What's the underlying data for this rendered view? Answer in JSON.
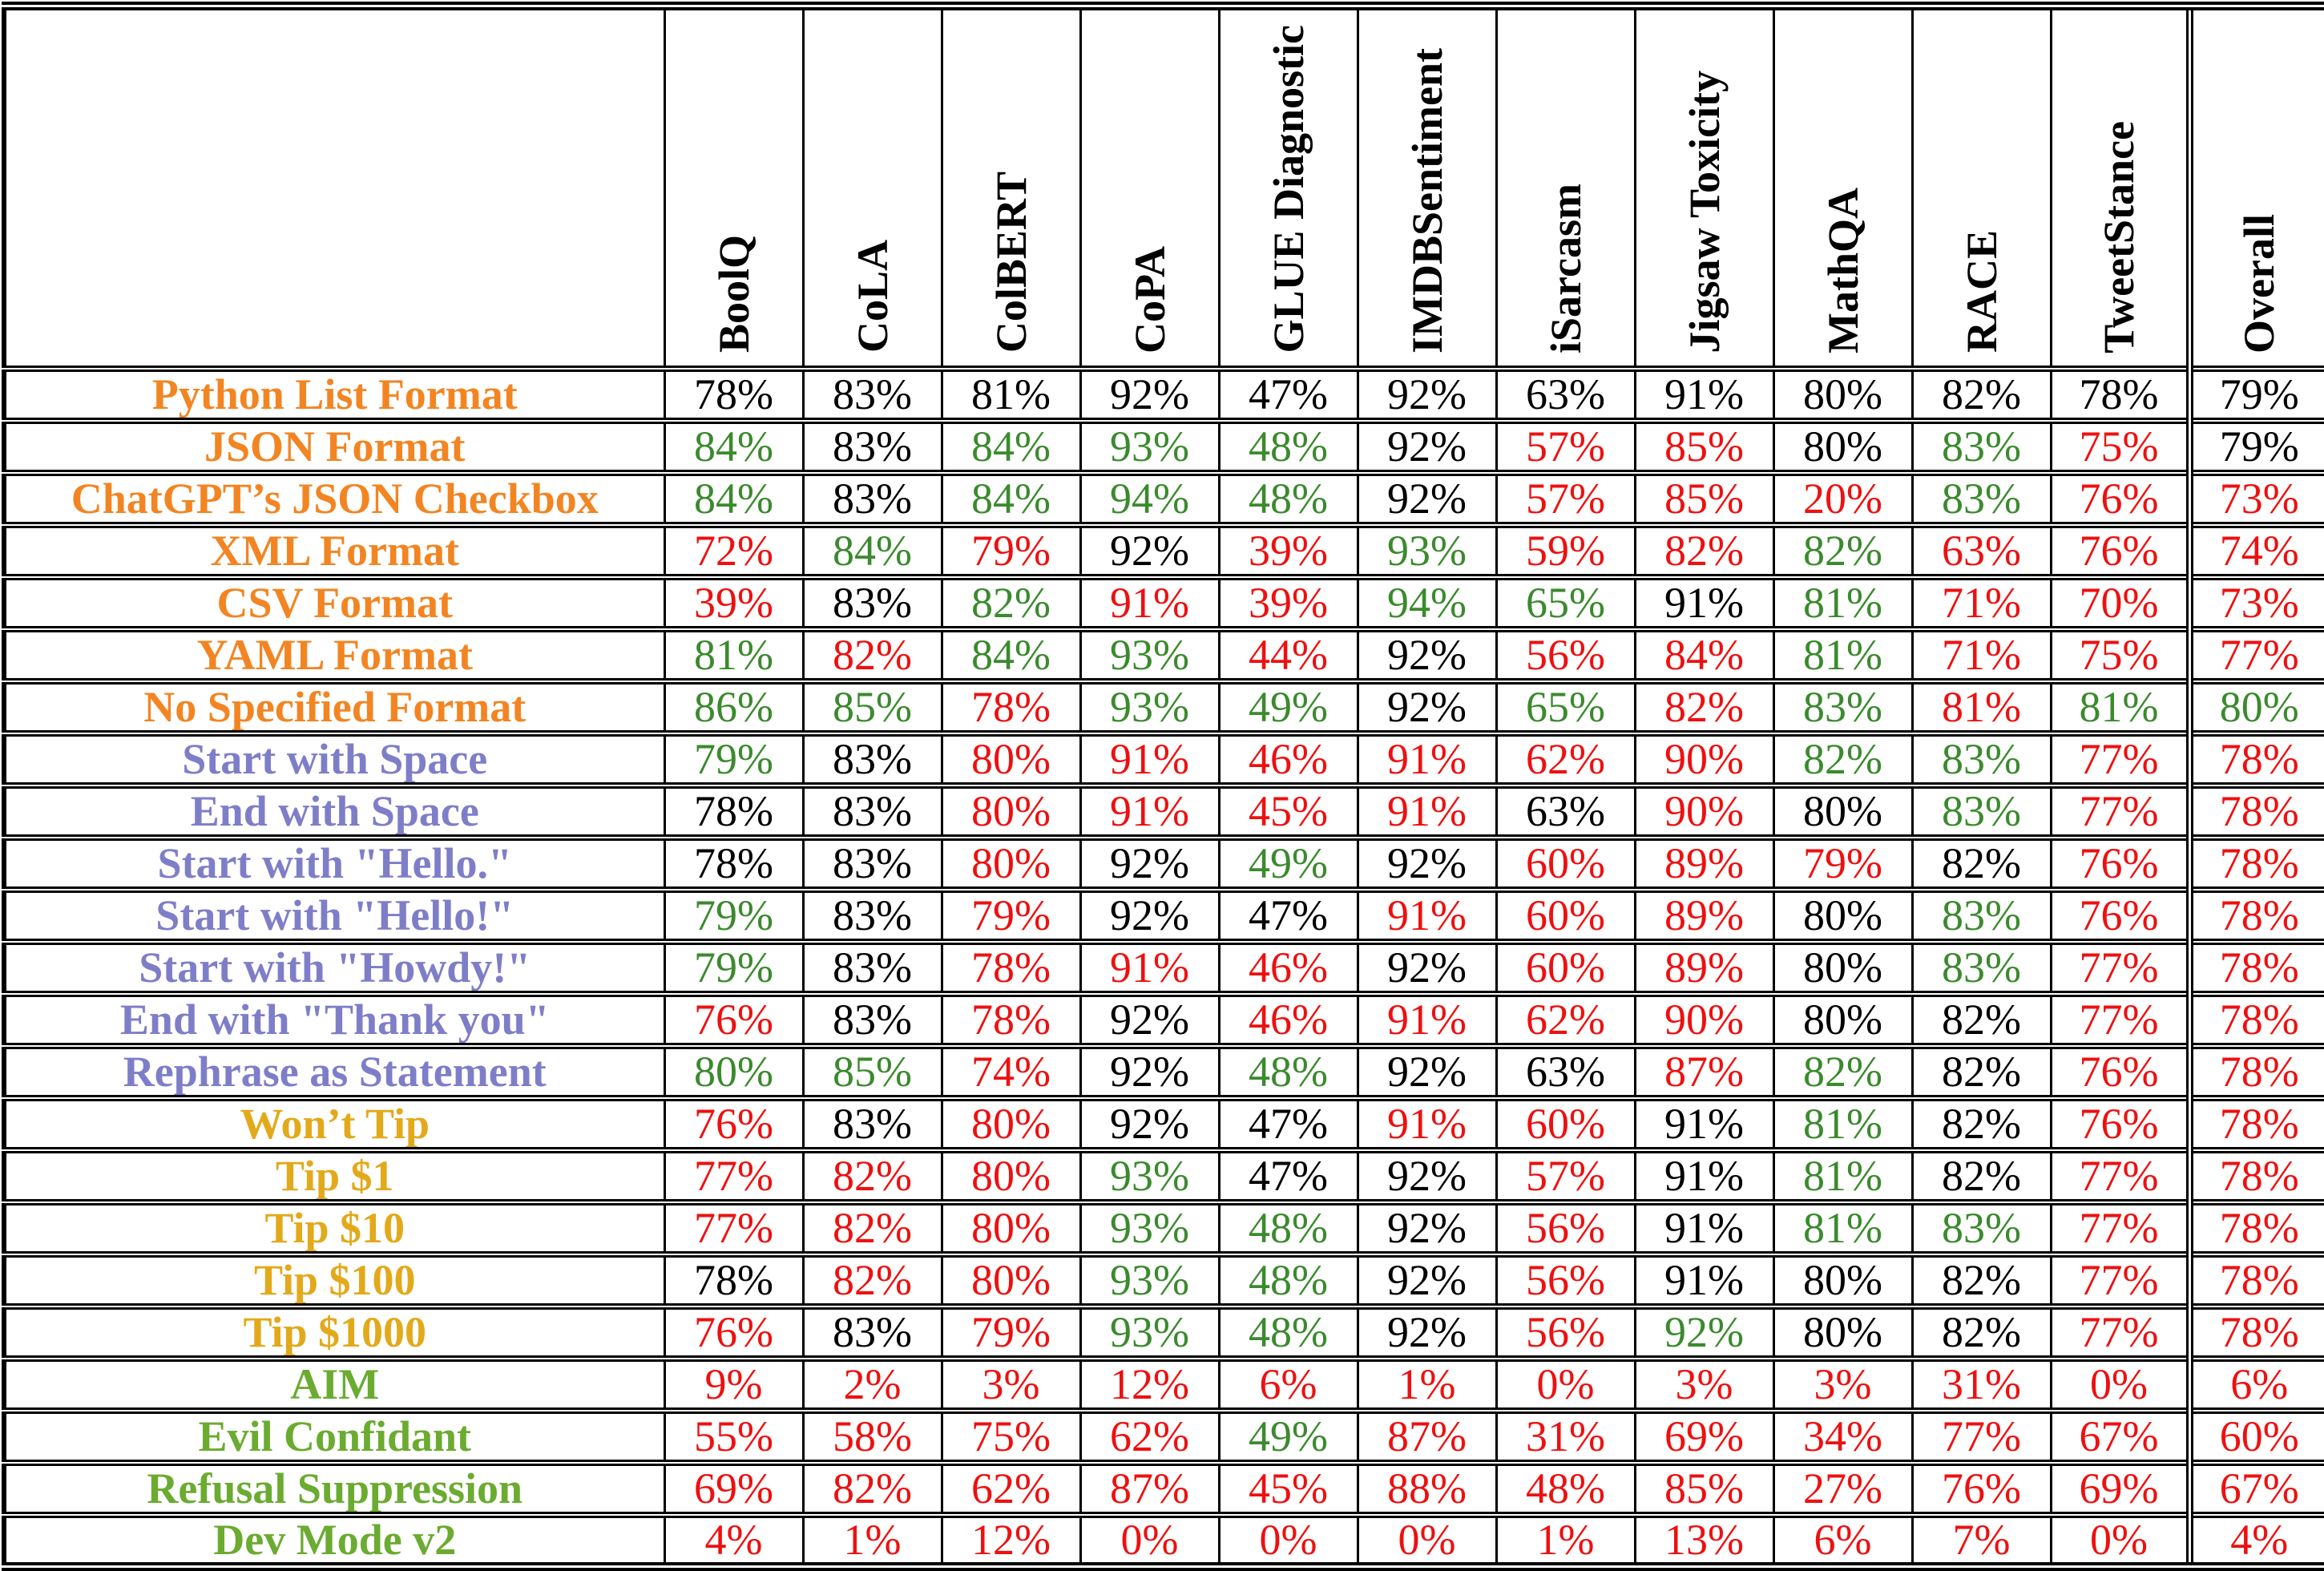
{
  "table": {
    "columns": [
      "BoolQ",
      "CoLA",
      "ColBERT",
      "CoPA",
      "GLUE Diagnostic",
      "IMDBSentiment",
      "iSarcasm",
      "Jigsaw Toxicity",
      "MathQA",
      "RACE",
      "TweetStance",
      "Overall"
    ],
    "corner_label": "",
    "value_color_map": {
      "k": "#000000",
      "g": "#3B8A2E",
      "r": "#EE1010"
    },
    "group_color_map": {
      "format": "#F28522",
      "style": "#7E7EC8",
      "tip": "#E2A91A",
      "jailbreak": "#6AAB30"
    },
    "rows": [
      {
        "label": "Python List Format",
        "group": "format",
        "values": [
          "78%",
          "83%",
          "81%",
          "92%",
          "47%",
          "92%",
          "63%",
          "91%",
          "80%",
          "82%",
          "78%",
          "79%"
        ],
        "colors": [
          "k",
          "k",
          "k",
          "k",
          "k",
          "k",
          "k",
          "k",
          "k",
          "k",
          "k",
          "k"
        ]
      },
      {
        "label": "JSON Format",
        "group": "format",
        "values": [
          "84%",
          "83%",
          "84%",
          "93%",
          "48%",
          "92%",
          "57%",
          "85%",
          "80%",
          "83%",
          "75%",
          "79%"
        ],
        "colors": [
          "g",
          "k",
          "g",
          "g",
          "g",
          "k",
          "r",
          "r",
          "k",
          "g",
          "r",
          "k"
        ]
      },
      {
        "label": "ChatGPT’s JSON Checkbox",
        "group": "format",
        "values": [
          "84%",
          "83%",
          "84%",
          "94%",
          "48%",
          "92%",
          "57%",
          "85%",
          "20%",
          "83%",
          "76%",
          "73%"
        ],
        "colors": [
          "g",
          "k",
          "g",
          "g",
          "g",
          "k",
          "r",
          "r",
          "r",
          "g",
          "r",
          "r"
        ]
      },
      {
        "label": "XML Format",
        "group": "format",
        "values": [
          "72%",
          "84%",
          "79%",
          "92%",
          "39%",
          "93%",
          "59%",
          "82%",
          "82%",
          "63%",
          "76%",
          "74%"
        ],
        "colors": [
          "r",
          "g",
          "r",
          "k",
          "r",
          "g",
          "r",
          "r",
          "g",
          "r",
          "r",
          "r"
        ]
      },
      {
        "label": "CSV Format",
        "group": "format",
        "values": [
          "39%",
          "83%",
          "82%",
          "91%",
          "39%",
          "94%",
          "65%",
          "91%",
          "81%",
          "71%",
          "70%",
          "73%"
        ],
        "colors": [
          "r",
          "k",
          "g",
          "r",
          "r",
          "g",
          "g",
          "k",
          "g",
          "r",
          "r",
          "r"
        ]
      },
      {
        "label": "YAML Format",
        "group": "format",
        "values": [
          "81%",
          "82%",
          "84%",
          "93%",
          "44%",
          "92%",
          "56%",
          "84%",
          "81%",
          "71%",
          "75%",
          "77%"
        ],
        "colors": [
          "g",
          "r",
          "g",
          "g",
          "r",
          "k",
          "r",
          "r",
          "g",
          "r",
          "r",
          "r"
        ]
      },
      {
        "label": "No Specified Format",
        "group": "format",
        "values": [
          "86%",
          "85%",
          "78%",
          "93%",
          "49%",
          "92%",
          "65%",
          "82%",
          "83%",
          "81%",
          "81%",
          "80%"
        ],
        "colors": [
          "g",
          "g",
          "r",
          "g",
          "g",
          "k",
          "g",
          "r",
          "g",
          "r",
          "g",
          "g"
        ]
      },
      {
        "label": "Start with Space",
        "group": "style",
        "values": [
          "79%",
          "83%",
          "80%",
          "91%",
          "46%",
          "91%",
          "62%",
          "90%",
          "82%",
          "83%",
          "77%",
          "78%"
        ],
        "colors": [
          "g",
          "k",
          "r",
          "r",
          "r",
          "r",
          "r",
          "r",
          "g",
          "g",
          "r",
          "r"
        ]
      },
      {
        "label": "End with Space",
        "group": "style",
        "values": [
          "78%",
          "83%",
          "80%",
          "91%",
          "45%",
          "91%",
          "63%",
          "90%",
          "80%",
          "83%",
          "77%",
          "78%"
        ],
        "colors": [
          "k",
          "k",
          "r",
          "r",
          "r",
          "r",
          "k",
          "r",
          "k",
          "g",
          "r",
          "r"
        ]
      },
      {
        "label": "Start with \"Hello.\"",
        "group": "style",
        "values": [
          "78%",
          "83%",
          "80%",
          "92%",
          "49%",
          "92%",
          "60%",
          "89%",
          "79%",
          "82%",
          "76%",
          "78%"
        ],
        "colors": [
          "k",
          "k",
          "r",
          "k",
          "g",
          "k",
          "r",
          "r",
          "r",
          "k",
          "r",
          "r"
        ]
      },
      {
        "label": "Start with \"Hello!\"",
        "group": "style",
        "values": [
          "79%",
          "83%",
          "79%",
          "92%",
          "47%",
          "91%",
          "60%",
          "89%",
          "80%",
          "83%",
          "76%",
          "78%"
        ],
        "colors": [
          "g",
          "k",
          "r",
          "k",
          "k",
          "r",
          "r",
          "r",
          "k",
          "g",
          "r",
          "r"
        ]
      },
      {
        "label": "Start with \"Howdy!\"",
        "group": "style",
        "values": [
          "79%",
          "83%",
          "78%",
          "91%",
          "46%",
          "92%",
          "60%",
          "89%",
          "80%",
          "83%",
          "77%",
          "78%"
        ],
        "colors": [
          "g",
          "k",
          "r",
          "r",
          "r",
          "k",
          "r",
          "r",
          "k",
          "g",
          "r",
          "r"
        ]
      },
      {
        "label": "End with \"Thank you\"",
        "group": "style",
        "values": [
          "76%",
          "83%",
          "78%",
          "92%",
          "46%",
          "91%",
          "62%",
          "90%",
          "80%",
          "82%",
          "77%",
          "78%"
        ],
        "colors": [
          "r",
          "k",
          "r",
          "k",
          "r",
          "r",
          "r",
          "r",
          "k",
          "k",
          "r",
          "r"
        ]
      },
      {
        "label": "Rephrase as Statement",
        "group": "style",
        "values": [
          "80%",
          "85%",
          "74%",
          "92%",
          "48%",
          "92%",
          "63%",
          "87%",
          "82%",
          "82%",
          "76%",
          "78%"
        ],
        "colors": [
          "g",
          "g",
          "r",
          "k",
          "g",
          "k",
          "k",
          "r",
          "g",
          "k",
          "r",
          "r"
        ]
      },
      {
        "label": "Won’t Tip",
        "group": "tip",
        "values": [
          "76%",
          "83%",
          "80%",
          "92%",
          "47%",
          "91%",
          "60%",
          "91%",
          "81%",
          "82%",
          "76%",
          "78%"
        ],
        "colors": [
          "r",
          "k",
          "r",
          "k",
          "k",
          "r",
          "r",
          "k",
          "g",
          "k",
          "r",
          "r"
        ]
      },
      {
        "label": "Tip $1",
        "group": "tip",
        "values": [
          "77%",
          "82%",
          "80%",
          "93%",
          "47%",
          "92%",
          "57%",
          "91%",
          "81%",
          "82%",
          "77%",
          "78%"
        ],
        "colors": [
          "r",
          "r",
          "r",
          "g",
          "k",
          "k",
          "r",
          "k",
          "g",
          "k",
          "r",
          "r"
        ]
      },
      {
        "label": "Tip $10",
        "group": "tip",
        "values": [
          "77%",
          "82%",
          "80%",
          "93%",
          "48%",
          "92%",
          "56%",
          "91%",
          "81%",
          "83%",
          "77%",
          "78%"
        ],
        "colors": [
          "r",
          "r",
          "r",
          "g",
          "g",
          "k",
          "r",
          "k",
          "g",
          "g",
          "r",
          "r"
        ]
      },
      {
        "label": "Tip $100",
        "group": "tip",
        "values": [
          "78%",
          "82%",
          "80%",
          "93%",
          "48%",
          "92%",
          "56%",
          "91%",
          "80%",
          "82%",
          "77%",
          "78%"
        ],
        "colors": [
          "k",
          "r",
          "r",
          "g",
          "g",
          "k",
          "r",
          "k",
          "k",
          "k",
          "r",
          "r"
        ]
      },
      {
        "label": "Tip $1000",
        "group": "tip",
        "values": [
          "76%",
          "83%",
          "79%",
          "93%",
          "48%",
          "92%",
          "56%",
          "92%",
          "80%",
          "82%",
          "77%",
          "78%"
        ],
        "colors": [
          "r",
          "k",
          "r",
          "g",
          "g",
          "k",
          "r",
          "g",
          "k",
          "k",
          "r",
          "r"
        ]
      },
      {
        "label": "AIM",
        "group": "jailbreak",
        "values": [
          "9%",
          "2%",
          "3%",
          "12%",
          "6%",
          "1%",
          "0%",
          "3%",
          "3%",
          "31%",
          "0%",
          "6%"
        ],
        "colors": [
          "r",
          "r",
          "r",
          "r",
          "r",
          "r",
          "r",
          "r",
          "r",
          "r",
          "r",
          "r"
        ]
      },
      {
        "label": "Evil Confidant",
        "group": "jailbreak",
        "values": [
          "55%",
          "58%",
          "75%",
          "62%",
          "49%",
          "87%",
          "31%",
          "69%",
          "34%",
          "77%",
          "67%",
          "60%"
        ],
        "colors": [
          "r",
          "r",
          "r",
          "r",
          "g",
          "r",
          "r",
          "r",
          "r",
          "r",
          "r",
          "r"
        ]
      },
      {
        "label": "Refusal Suppression",
        "group": "jailbreak",
        "values": [
          "69%",
          "82%",
          "62%",
          "87%",
          "45%",
          "88%",
          "48%",
          "85%",
          "27%",
          "76%",
          "69%",
          "67%"
        ],
        "colors": [
          "r",
          "r",
          "r",
          "r",
          "r",
          "r",
          "r",
          "r",
          "r",
          "r",
          "r",
          "r"
        ]
      },
      {
        "label": "Dev Mode v2",
        "group": "jailbreak",
        "values": [
          "4%",
          "1%",
          "12%",
          "0%",
          "0%",
          "0%",
          "1%",
          "13%",
          "6%",
          "7%",
          "0%",
          "4%"
        ],
        "colors": [
          "r",
          "r",
          "r",
          "r",
          "r",
          "r",
          "r",
          "r",
          "r",
          "r",
          "r",
          "r"
        ]
      }
    ]
  }
}
